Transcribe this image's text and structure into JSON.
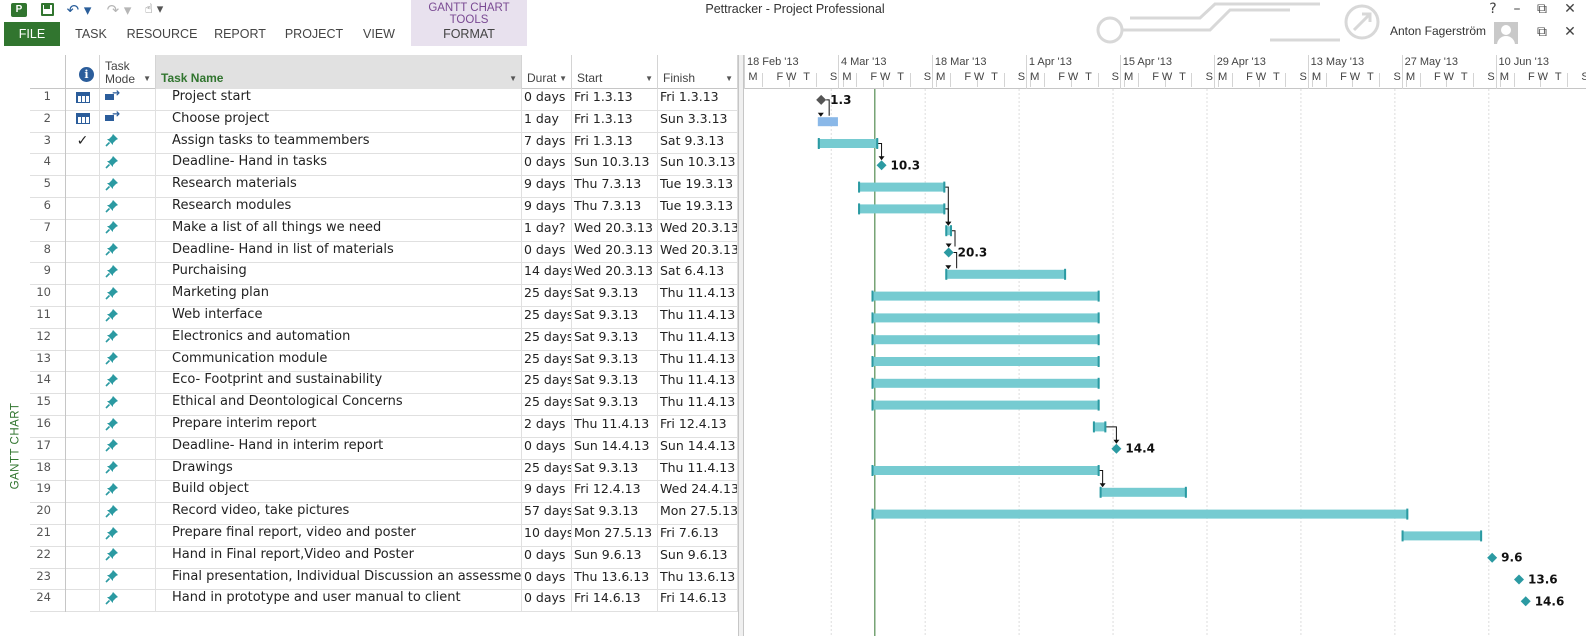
{
  "app": {
    "window_title": "Pettracker - Project Professional",
    "user_name": "Anton Fagerström",
    "icons": {
      "app": "project-app-icon",
      "save": "save-icon",
      "undo": "undo-icon",
      "redo": "redo-icon",
      "touch": "touch-mode-icon",
      "help": "help-icon",
      "minimize": "minimize-icon",
      "restore": "restore-icon",
      "close": "close-icon"
    },
    "glyphs": {
      "app": "P",
      "undo": "↶ ▾",
      "redo": "↷ ▾",
      "touch": "☝ ▾",
      "help": "?",
      "minimize": "–",
      "restore": "⧉",
      "close": "✕"
    }
  },
  "ribbon": {
    "contextual_label": "GANTT CHART TOOLS",
    "tabs": [
      {
        "label": "FILE",
        "id": "file"
      },
      {
        "label": "TASK",
        "id": "task"
      },
      {
        "label": "RESOURCE",
        "id": "resource"
      },
      {
        "label": "REPORT",
        "id": "report"
      },
      {
        "label": "PROJECT",
        "id": "project"
      },
      {
        "label": "VIEW",
        "id": "view"
      },
      {
        "label": "FORMAT",
        "id": "format"
      }
    ]
  },
  "view_label": "GANTT CHART",
  "grid": {
    "columns": {
      "info_icon": "i",
      "task_mode": [
        "Task",
        "Mode"
      ],
      "task_name": "Task Name",
      "duration": "Durat",
      "start": "Start",
      "finish": "Finish",
      "dropdown_glyph": "▼"
    },
    "indicator_glyphs": {
      "check": "✓"
    },
    "tasks": [
      {
        "id": "1",
        "indicator": "calendar",
        "mode": "auto",
        "name": "Project start",
        "duration": "0 days",
        "start": "Fri 1.3.13",
        "finish": "Fri 1.3.13"
      },
      {
        "id": "2",
        "indicator": "calendar",
        "mode": "auto",
        "name": "Choose project",
        "duration": "1 day",
        "start": "Fri 1.3.13",
        "finish": "Sun 3.3.13"
      },
      {
        "id": "3",
        "indicator": "check",
        "mode": "manual",
        "name": "Assign tasks to teammembers",
        "duration": "7 days",
        "start": "Fri 1.3.13",
        "finish": "Sat 9.3.13"
      },
      {
        "id": "4",
        "indicator": "",
        "mode": "manual",
        "name": "Deadline- Hand in tasks",
        "duration": "0 days",
        "start": "Sun 10.3.13",
        "finish": "Sun 10.3.13"
      },
      {
        "id": "5",
        "indicator": "",
        "mode": "manual",
        "name": "Research materials",
        "duration": "9 days",
        "start": "Thu 7.3.13",
        "finish": "Tue 19.3.13"
      },
      {
        "id": "6",
        "indicator": "",
        "mode": "manual",
        "name": "Research modules",
        "duration": "9 days",
        "start": "Thu 7.3.13",
        "finish": "Tue 19.3.13"
      },
      {
        "id": "7",
        "indicator": "",
        "mode": "manual",
        "name": "Make a list of all things we need",
        "duration": "1 day?",
        "start": "Wed 20.3.13",
        "finish": "Wed 20.3.13"
      },
      {
        "id": "8",
        "indicator": "",
        "mode": "manual",
        "name": "Deadline- Hand in list of materials",
        "duration": "0 days",
        "start": "Wed 20.3.13",
        "finish": "Wed 20.3.13"
      },
      {
        "id": "9",
        "indicator": "",
        "mode": "manual",
        "name": "Purchaising",
        "duration": "14 days",
        "start": "Wed 20.3.13",
        "finish": "Sat 6.4.13"
      },
      {
        "id": "10",
        "indicator": "",
        "mode": "manual",
        "name": "Marketing plan",
        "duration": "25 days",
        "start": "Sat 9.3.13",
        "finish": "Thu 11.4.13"
      },
      {
        "id": "11",
        "indicator": "",
        "mode": "manual",
        "name": "Web interface",
        "duration": "25 days",
        "start": "Sat 9.3.13",
        "finish": "Thu 11.4.13"
      },
      {
        "id": "12",
        "indicator": "",
        "mode": "manual",
        "name": "Electronics and automation",
        "duration": "25 days",
        "start": "Sat 9.3.13",
        "finish": "Thu 11.4.13"
      },
      {
        "id": "13",
        "indicator": "",
        "mode": "manual",
        "name": "Communication module",
        "duration": "25 days",
        "start": "Sat 9.3.13",
        "finish": "Thu 11.4.13"
      },
      {
        "id": "14",
        "indicator": "",
        "mode": "manual",
        "name": "Eco- Footprint and sustainability",
        "duration": "25 days",
        "start": "Sat 9.3.13",
        "finish": "Thu 11.4.13"
      },
      {
        "id": "15",
        "indicator": "",
        "mode": "manual",
        "name": "Ethical and Deontological Concerns",
        "duration": "25 days",
        "start": "Sat 9.3.13",
        "finish": "Thu 11.4.13"
      },
      {
        "id": "16",
        "indicator": "",
        "mode": "manual",
        "name": "Prepare interim report",
        "duration": "2 days",
        "start": "Thu 11.4.13",
        "finish": "Fri 12.4.13"
      },
      {
        "id": "17",
        "indicator": "",
        "mode": "manual",
        "name": "Deadline- Hand in interim report",
        "duration": "0 days",
        "start": "Sun 14.4.13",
        "finish": "Sun 14.4.13"
      },
      {
        "id": "18",
        "indicator": "",
        "mode": "manual",
        "name": "Drawings",
        "duration": "25 days",
        "start": "Sat 9.3.13",
        "finish": "Thu 11.4.13"
      },
      {
        "id": "19",
        "indicator": "",
        "mode": "manual",
        "name": "Build object",
        "duration": "9 days",
        "start": "Fri 12.4.13",
        "finish": "Wed 24.4.13"
      },
      {
        "id": "20",
        "indicator": "",
        "mode": "manual",
        "name": "Record video, take pictures",
        "duration": "57 days",
        "start": "Sat 9.3.13",
        "finish": "Mon 27.5.13"
      },
      {
        "id": "21",
        "indicator": "",
        "mode": "manual",
        "name": "Prepare final report, video and poster",
        "duration": "10 days",
        "start": "Mon 27.5.13",
        "finish": "Fri 7.6.13"
      },
      {
        "id": "22",
        "indicator": "",
        "mode": "manual",
        "name": "Hand in Final report,Video and Poster",
        "duration": "0 days",
        "start": "Sun 9.6.13",
        "finish": "Sun 9.6.13"
      },
      {
        "id": "23",
        "indicator": "",
        "mode": "manual",
        "name": "Final presentation, Individual Discussion an assessment",
        "duration": "0 days",
        "start": "Thu 13.6.13",
        "finish": "Thu 13.6.13"
      },
      {
        "id": "24",
        "indicator": "",
        "mode": "manual",
        "name": "Hand in prototype and user manual to client",
        "duration": "0 days",
        "start": "Fri 14.6.13",
        "finish": "Fri 14.6.13"
      }
    ]
  },
  "timescale": {
    "weeks": [
      "18 Feb '13",
      "4 Mar '13",
      "18 Mar '13",
      "1 Apr '13",
      "15 Apr '13",
      "29 Apr '13",
      "13 May '13",
      "27 May '13",
      "10 Jun '13"
    ],
    "week_start_dates": [
      "2013-02-18",
      "2013-03-04",
      "2013-03-18",
      "2013-04-01",
      "2013-04-15",
      "2013-04-29",
      "2013-05-13",
      "2013-05-27",
      "2013-06-10"
    ],
    "day_letters": [
      "M",
      "F",
      "T",
      "S",
      "W"
    ],
    "window_start_date": "2013-02-18",
    "window_end_date": "2013-06-17"
  },
  "chart_data": {
    "type": "gantt",
    "status_date": "2013-03-09",
    "bars": [
      {
        "task": "1",
        "kind": "milestone",
        "start": "2013-03-01",
        "label": "1.3",
        "style": "auto"
      },
      {
        "task": "2",
        "kind": "task",
        "start": "2013-03-01",
        "end": "2013-03-03",
        "style": "auto"
      },
      {
        "task": "3",
        "kind": "task",
        "start": "2013-03-01",
        "end": "2013-03-09",
        "style": "manual"
      },
      {
        "task": "4",
        "kind": "milestone",
        "start": "2013-03-10",
        "label": "10.3",
        "style": "manual"
      },
      {
        "task": "5",
        "kind": "task",
        "start": "2013-03-07",
        "end": "2013-03-19",
        "style": "manual"
      },
      {
        "task": "6",
        "kind": "task",
        "start": "2013-03-07",
        "end": "2013-03-19",
        "style": "manual"
      },
      {
        "task": "7",
        "kind": "task",
        "start": "2013-03-20",
        "end": "2013-03-20",
        "style": "manual"
      },
      {
        "task": "8",
        "kind": "milestone",
        "start": "2013-03-20",
        "label": "20.3",
        "style": "manual"
      },
      {
        "task": "9",
        "kind": "task",
        "start": "2013-03-20",
        "end": "2013-04-06",
        "style": "manual"
      },
      {
        "task": "10",
        "kind": "task",
        "start": "2013-03-09",
        "end": "2013-04-11",
        "style": "manual"
      },
      {
        "task": "11",
        "kind": "task",
        "start": "2013-03-09",
        "end": "2013-04-11",
        "style": "manual"
      },
      {
        "task": "12",
        "kind": "task",
        "start": "2013-03-09",
        "end": "2013-04-11",
        "style": "manual"
      },
      {
        "task": "13",
        "kind": "task",
        "start": "2013-03-09",
        "end": "2013-04-11",
        "style": "manual"
      },
      {
        "task": "14",
        "kind": "task",
        "start": "2013-03-09",
        "end": "2013-04-11",
        "style": "manual"
      },
      {
        "task": "15",
        "kind": "task",
        "start": "2013-03-09",
        "end": "2013-04-11",
        "style": "manual"
      },
      {
        "task": "16",
        "kind": "task",
        "start": "2013-04-11",
        "end": "2013-04-12",
        "style": "manual"
      },
      {
        "task": "17",
        "kind": "milestone",
        "start": "2013-04-14",
        "label": "14.4",
        "style": "manual"
      },
      {
        "task": "18",
        "kind": "task",
        "start": "2013-03-09",
        "end": "2013-04-11",
        "style": "manual"
      },
      {
        "task": "19",
        "kind": "task",
        "start": "2013-04-12",
        "end": "2013-04-24",
        "style": "manual"
      },
      {
        "task": "20",
        "kind": "task",
        "start": "2013-03-09",
        "end": "2013-05-27",
        "style": "manual"
      },
      {
        "task": "21",
        "kind": "task",
        "start": "2013-05-27",
        "end": "2013-06-07",
        "style": "manual"
      },
      {
        "task": "22",
        "kind": "milestone",
        "start": "2013-06-09",
        "label": "9.6",
        "style": "manual"
      },
      {
        "task": "23",
        "kind": "milestone",
        "start": "2013-06-13",
        "label": "13.6",
        "style": "manual"
      },
      {
        "task": "24",
        "kind": "milestone",
        "start": "2013-06-14",
        "label": "14.6",
        "style": "manual"
      }
    ],
    "links": [
      {
        "from": "1",
        "to": "2"
      },
      {
        "from": "3",
        "to": "4"
      },
      {
        "from": "5",
        "to": "7"
      },
      {
        "from": "6",
        "to": "7"
      },
      {
        "from": "7",
        "to": "8"
      },
      {
        "from": "8",
        "to": "9"
      },
      {
        "from": "16",
        "to": "17"
      },
      {
        "from": "18",
        "to": "19"
      }
    ],
    "colors": {
      "manual_bar": "#76cbd1",
      "manual_bar_edge": "#2b9aa2",
      "auto_bar": "#8ab8e8",
      "milestone_manual": "#2b9aa2",
      "milestone_auto": "#555555",
      "link": "#111111",
      "status_line": "#31752f",
      "grid_line": "#dcdcdc"
    }
  }
}
